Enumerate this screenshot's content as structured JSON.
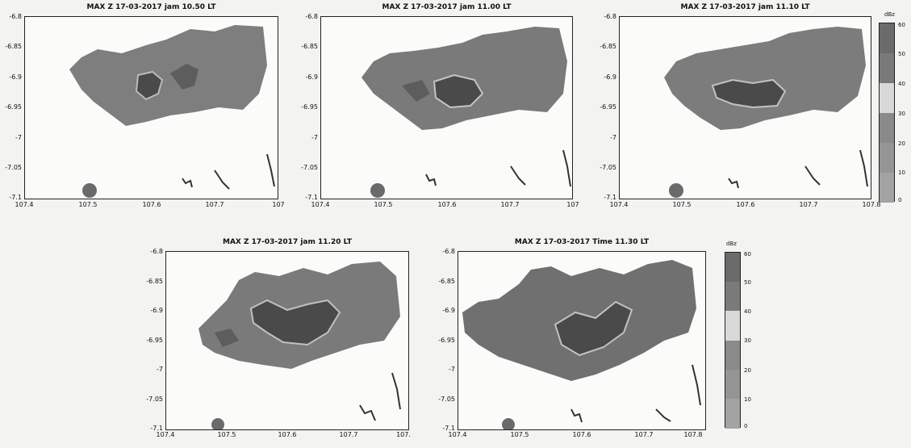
{
  "figure": {
    "panels": [
      {
        "title": "MAX Z 17-03-2017 jam 10.50 LT",
        "xticks": [
          "107.4",
          "107.5",
          "107.6",
          "107.7",
          "107"
        ],
        "yticks": [
          "-6.8",
          "-6.85",
          "-6.9",
          "-6.95",
          "-7",
          "-7.05",
          "-7.1"
        ]
      },
      {
        "title": "MAX Z 17-03-2017 jam 11.00 LT",
        "xticks": [
          "107.4",
          "107.5",
          "107.6",
          "107.7",
          "107"
        ],
        "yticks": [
          "-6.8",
          "-6.85",
          "-6.9",
          "-6.95",
          "-7",
          "-7.05",
          "-7.1"
        ]
      },
      {
        "title": "MAX Z 17-03-2017 jam 11.10 LT",
        "xticks": [
          "107.4",
          "107.5",
          "107.6",
          "107.7",
          "107.8"
        ],
        "yticks": [
          "-6.8",
          "-6.85",
          "-6.9",
          "-6.95",
          "-7",
          "-7.05",
          "-7.1"
        ]
      },
      {
        "title": "MAX Z 17-03-2017 jam 11.20 LT",
        "xticks": [
          "107.4",
          "107.5",
          "107.6",
          "107.7",
          "107."
        ],
        "yticks": [
          "-6.8",
          "-6.85",
          "-6.9",
          "-6.95",
          "-7",
          "-7.05",
          "-7.1"
        ]
      },
      {
        "title": "MAX Z 17-03-2017 Time 11.30 LT",
        "xticks": [
          "107.4",
          "107.5",
          "107.6",
          "107.7",
          "107.8"
        ],
        "yticks": [
          "-6.8",
          "-6.85",
          "-6.9",
          "-6.95",
          "-7",
          "-7.05",
          "-7.1"
        ]
      }
    ],
    "colorbars": [
      {
        "unit": "dBz",
        "ticks": [
          "60",
          "50",
          "40",
          "30",
          "20",
          "10",
          "0"
        ]
      },
      {
        "unit": "dBz",
        "ticks": [
          "60",
          "50",
          "40",
          "30",
          "20",
          "10",
          "0"
        ]
      }
    ],
    "colors": {
      "echo_dark": "#5d5d5d",
      "echo_mid": "#7e7e7e",
      "echo_light": "#a9a9a9",
      "core": "#4a4a4a",
      "cbar_steps": [
        "#6b6b6b",
        "#7a7a7a",
        "#d8d8d8",
        "#8a8a8a",
        "#959595",
        "#a3a3a3"
      ]
    }
  }
}
